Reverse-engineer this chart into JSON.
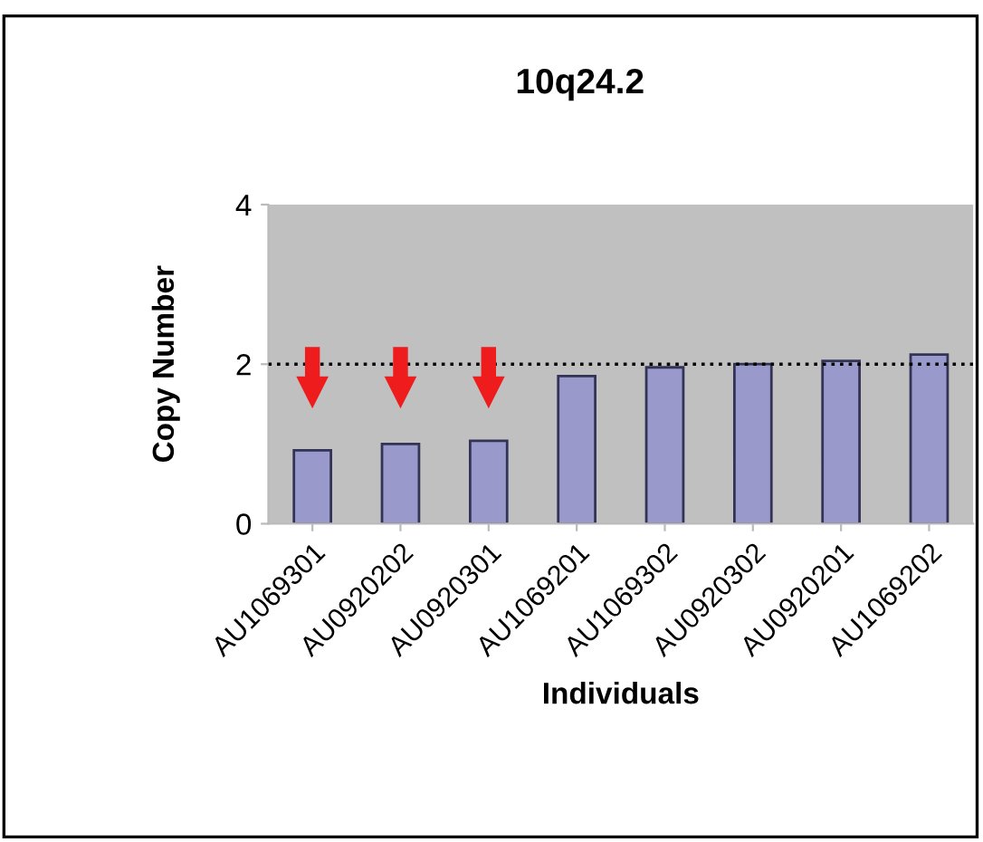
{
  "chart_data": {
    "type": "bar",
    "title": "10q24.2",
    "xlabel": "Individuals",
    "ylabel": "Copy Number",
    "categories": [
      "AU1069301",
      "AU0920202",
      "AU0920301",
      "AU1069201",
      "AU1069302",
      "AU0920302",
      "AU0920201",
      "AU1069202"
    ],
    "values": [
      0.92,
      1.0,
      1.04,
      1.85,
      1.96,
      2.0,
      2.04,
      2.12
    ],
    "color": "#9999cc",
    "ylim": [
      0,
      4
    ],
    "yticks": [
      0,
      2,
      4
    ],
    "ref_lines": [
      {
        "axis": "y",
        "value": 2,
        "color": "#000000",
        "line_style": "dotted"
      }
    ],
    "grid": false,
    "legend": false
  }
}
